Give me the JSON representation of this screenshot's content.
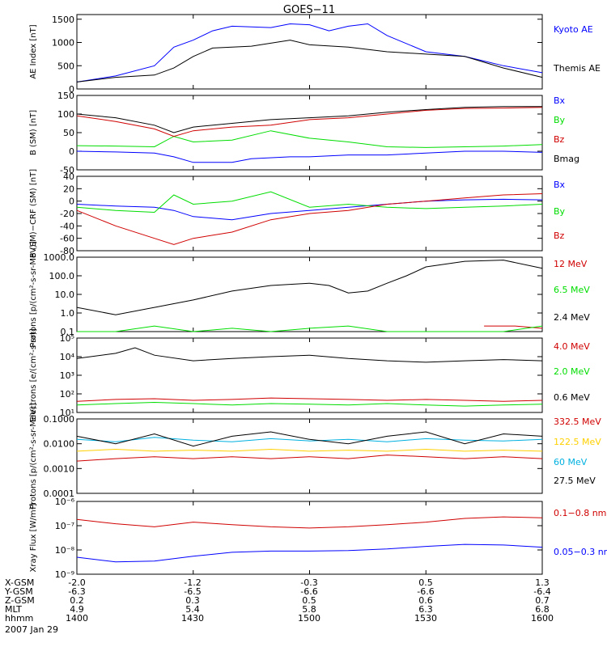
{
  "title": "GOES−11",
  "colors": {
    "black": "#000000",
    "blue": "#0000ff",
    "red": "#d00000",
    "green": "#00dd00",
    "cyan": "#00b0e0",
    "yellow": "#ffd000"
  },
  "footer": {
    "rows": [
      {
        "label": "X-GSM",
        "values": [
          "-2.0",
          "-1.2",
          "-0.3",
          "0.5",
          "1.3"
        ]
      },
      {
        "label": "Y-GSM",
        "values": [
          "-6.3",
          "-6.5",
          "-6.6",
          "-6.6",
          "-6.4"
        ]
      },
      {
        "label": "Z-GSM",
        "values": [
          "0.2",
          "0.3",
          "0.5",
          "0.6",
          "0.7"
        ]
      },
      {
        "label": "MLT",
        "values": [
          "4.9",
          "5.4",
          "5.8",
          "6.3",
          "6.8"
        ]
      },
      {
        "label": "hhmm",
        "values": [
          "1400",
          "1430",
          "1500",
          "1530",
          "1600"
        ]
      }
    ],
    "date": "2007 Jan 29"
  },
  "chart_data": [
    {
      "type": "line",
      "ylabel": "AE Index [nT]",
      "scale": "linear",
      "ylim": [
        0,
        1600
      ],
      "yticks": [
        0,
        500,
        1000,
        1500
      ],
      "ytick_labels": [
        "0",
        "500",
        "1000",
        "1500"
      ],
      "series": [
        {
          "name": "Kyoto AE",
          "color": "#0000ff",
          "x": [
            1400,
            1410,
            1420,
            1425,
            1430,
            1435,
            1440,
            1450,
            1455,
            1500,
            1505,
            1510,
            1515,
            1520,
            1530,
            1535,
            1540,
            1545,
            1550,
            1600
          ],
          "y": [
            150,
            280,
            500,
            900,
            1050,
            1250,
            1350,
            1320,
            1400,
            1380,
            1250,
            1350,
            1400,
            1150,
            800,
            750,
            700,
            600,
            500,
            350
          ]
        },
        {
          "name": "Themis AE",
          "color": "#000000",
          "x": [
            1400,
            1410,
            1420,
            1425,
            1430,
            1435,
            1445,
            1455,
            1500,
            1510,
            1520,
            1530,
            1540,
            1550,
            1600
          ],
          "y": [
            150,
            250,
            300,
            450,
            700,
            880,
            920,
            1050,
            950,
            900,
            800,
            750,
            700,
            450,
            250
          ]
        }
      ]
    },
    {
      "type": "line",
      "ylabel": "B (SM) [nT]",
      "scale": "linear",
      "ylim": [
        -50,
        150
      ],
      "yticks": [
        -50,
        0,
        50,
        100,
        150
      ],
      "ytick_labels": [
        "-50",
        "0",
        "50",
        "100",
        "150"
      ],
      "series": [
        {
          "name": "Bx",
          "color": "#0000ff",
          "x": [
            1400,
            1410,
            1420,
            1425,
            1430,
            1440,
            1445,
            1455,
            1500,
            1510,
            1520,
            1530,
            1540,
            1550,
            1600
          ],
          "y": [
            0,
            -2,
            -5,
            -15,
            -30,
            -30,
            -20,
            -15,
            -15,
            -10,
            -10,
            -5,
            0,
            0,
            -3
          ]
        },
        {
          "name": "By",
          "color": "#00dd00",
          "x": [
            1400,
            1410,
            1420,
            1425,
            1430,
            1440,
            1450,
            1500,
            1510,
            1520,
            1530,
            1540,
            1550,
            1600
          ],
          "y": [
            15,
            14,
            12,
            40,
            25,
            30,
            55,
            35,
            25,
            12,
            10,
            12,
            14,
            18
          ]
        },
        {
          "name": "Bz",
          "color": "#d00000",
          "x": [
            1400,
            1410,
            1420,
            1425,
            1430,
            1440,
            1450,
            1500,
            1510,
            1520,
            1530,
            1540,
            1550,
            1600
          ],
          "y": [
            95,
            80,
            60,
            40,
            55,
            65,
            70,
            85,
            90,
            100,
            110,
            115,
            116,
            118
          ]
        },
        {
          "name": "Bmag",
          "color": "#000000",
          "x": [
            1400,
            1410,
            1420,
            1425,
            1430,
            1440,
            1450,
            1500,
            1510,
            1520,
            1530,
            1540,
            1550,
            1600
          ],
          "y": [
            100,
            90,
            70,
            50,
            65,
            75,
            85,
            90,
            95,
            105,
            112,
            118,
            120,
            120
          ]
        }
      ]
    },
    {
      "type": "line",
      "ylabel": "B (SM)−CRF (SM) [nT]",
      "scale": "linear",
      "ylim": [
        -80,
        40
      ],
      "yticks": [
        -80,
        -60,
        -40,
        -20,
        0,
        20,
        40
      ],
      "ytick_labels": [
        "-80",
        "-60",
        "-40",
        "-20",
        "0",
        "20",
        "40"
      ],
      "series": [
        {
          "name": "Bx",
          "color": "#0000ff",
          "x": [
            1400,
            1410,
            1420,
            1425,
            1430,
            1440,
            1450,
            1500,
            1510,
            1520,
            1530,
            1540,
            1550,
            1600
          ],
          "y": [
            -5,
            -8,
            -10,
            -15,
            -25,
            -30,
            -20,
            -15,
            -10,
            -5,
            0,
            2,
            3,
            2
          ]
        },
        {
          "name": "By",
          "color": "#00dd00",
          "x": [
            1400,
            1410,
            1420,
            1425,
            1430,
            1440,
            1450,
            1500,
            1510,
            1520,
            1530,
            1540,
            1550,
            1600
          ],
          "y": [
            -10,
            -15,
            -18,
            10,
            -5,
            0,
            15,
            -10,
            -5,
            -10,
            -12,
            -10,
            -8,
            -5
          ]
        },
        {
          "name": "Bz",
          "color": "#d00000",
          "x": [
            1400,
            1410,
            1420,
            1425,
            1430,
            1440,
            1450,
            1500,
            1510,
            1520,
            1530,
            1540,
            1550,
            1600
          ],
          "y": [
            -15,
            -40,
            -60,
            -70,
            -60,
            -50,
            -30,
            -20,
            -15,
            -5,
            0,
            5,
            10,
            12
          ]
        }
      ]
    },
    {
      "type": "line",
      "ylabel": "Protons [p/(cm²-s-sr-MeV)]",
      "scale": "log",
      "ylim": [
        0.1,
        1000
      ],
      "yticks": [
        0.1,
        1,
        10,
        100,
        1000
      ],
      "ytick_labels": [
        "0.1",
        "1.0",
        "10.0",
        "100.0",
        "1000.0"
      ],
      "series": [
        {
          "name": "12 MeV",
          "color": "#d00000",
          "x": [
            1545,
            1553,
            1600
          ],
          "y": [
            0.2,
            0.2,
            0.15
          ]
        },
        {
          "name": "6.5 MeV",
          "color": "#00dd00",
          "x": [
            1400,
            1410,
            1420,
            1430,
            1440,
            1450,
            1500,
            1510,
            1520,
            1530,
            1540,
            1550,
            1600
          ],
          "y": [
            0.1,
            0.1,
            0.2,
            0.1,
            0.15,
            0.1,
            0.15,
            0.2,
            0.1,
            0.1,
            0.1,
            0.1,
            0.2
          ]
        },
        {
          "name": "2.4 MeV",
          "color": "#000000",
          "x": [
            1400,
            1410,
            1420,
            1430,
            1440,
            1450,
            1500,
            1505,
            1510,
            1515,
            1520,
            1525,
            1530,
            1540,
            1550,
            1600
          ],
          "y": [
            2,
            0.8,
            2,
            5,
            15,
            30,
            40,
            30,
            12,
            15,
            40,
            100,
            300,
            600,
            700,
            250
          ]
        }
      ]
    },
    {
      "type": "line",
      "ylabel": "Electrons [e/(cm²-s-sr)]",
      "scale": "log",
      "ylim": [
        10,
        100000
      ],
      "yticks": [
        10,
        100,
        1000,
        10000,
        100000
      ],
      "ytick_labels": [
        "10¹",
        "10²",
        "10³",
        "10⁴",
        "10⁵"
      ],
      "series": [
        {
          "name": "4.0 MeV",
          "color": "#d00000",
          "x": [
            1400,
            1410,
            1420,
            1430,
            1440,
            1450,
            1500,
            1510,
            1520,
            1530,
            1540,
            1550,
            1600
          ],
          "y": [
            40,
            50,
            55,
            45,
            50,
            60,
            55,
            50,
            45,
            50,
            45,
            40,
            45
          ]
        },
        {
          "name": "2.0 MeV",
          "color": "#00dd00",
          "x": [
            1400,
            1410,
            1420,
            1430,
            1440,
            1450,
            1500,
            1510,
            1520,
            1530,
            1540,
            1550,
            1600
          ],
          "y": [
            25,
            30,
            35,
            30,
            25,
            30,
            28,
            25,
            30,
            25,
            22,
            25,
            28
          ]
        },
        {
          "name": "0.6 MeV",
          "color": "#000000",
          "x": [
            1400,
            1410,
            1415,
            1420,
            1430,
            1440,
            1450,
            1500,
            1510,
            1520,
            1530,
            1540,
            1550,
            1600
          ],
          "y": [
            8000,
            15000,
            30000,
            12000,
            6000,
            8000,
            10000,
            12000,
            8000,
            6000,
            5000,
            6000,
            7000,
            6000
          ]
        }
      ]
    },
    {
      "type": "line",
      "ylabel": "Protons [p/(cm²-s-sr-MeV)]",
      "scale": "log",
      "ylim": [
        0.0001,
        0.1
      ],
      "yticks": [
        0.0001,
        0.001,
        0.01,
        0.1
      ],
      "ytick_labels": [
        "0.0001",
        "0.0010",
        "0.0100",
        "0.1000"
      ],
      "series": [
        {
          "name": "332.5 MeV",
          "color": "#d00000",
          "x": [
            1400,
            1410,
            1420,
            1430,
            1440,
            1450,
            1500,
            1510,
            1520,
            1530,
            1540,
            1550,
            1600
          ],
          "y": [
            0.002,
            0.0025,
            0.003,
            0.0025,
            0.003,
            0.0025,
            0.003,
            0.0025,
            0.0035,
            0.003,
            0.0025,
            0.003,
            0.0025
          ]
        },
        {
          "name": "122.5 MeV",
          "color": "#ffd000",
          "x": [
            1400,
            1410,
            1420,
            1430,
            1440,
            1450,
            1500,
            1510,
            1520,
            1530,
            1540,
            1550,
            1600
          ],
          "y": [
            0.005,
            0.006,
            0.005,
            0.0055,
            0.005,
            0.006,
            0.005,
            0.0055,
            0.005,
            0.006,
            0.005,
            0.0055,
            0.005
          ]
        },
        {
          "name": "60 MeV",
          "color": "#00b0e0",
          "x": [
            1400,
            1410,
            1420,
            1430,
            1440,
            1450,
            1500,
            1510,
            1520,
            1530,
            1540,
            1550,
            1600
          ],
          "y": [
            0.015,
            0.012,
            0.018,
            0.014,
            0.012,
            0.016,
            0.013,
            0.015,
            0.012,
            0.016,
            0.014,
            0.013,
            0.015
          ]
        },
        {
          "name": "27.5 MeV",
          "color": "#000000",
          "x": [
            1400,
            1410,
            1420,
            1430,
            1440,
            1450,
            1500,
            1510,
            1520,
            1530,
            1540,
            1550,
            1600
          ],
          "y": [
            0.02,
            0.01,
            0.025,
            0.008,
            0.02,
            0.03,
            0.015,
            0.01,
            0.02,
            0.03,
            0.01,
            0.025,
            0.02
          ]
        }
      ]
    },
    {
      "type": "line",
      "ylabel": "Xray Flux [W/m²]",
      "scale": "log",
      "ylim": [
        1e-09,
        1e-06
      ],
      "yticks": [
        1e-09,
        1e-08,
        1e-07,
        1e-06
      ],
      "ytick_labels": [
        "10⁻⁹",
        "10⁻⁸",
        "10⁻⁷",
        "10⁻⁶"
      ],
      "series": [
        {
          "name": "0.1−0.8 nm",
          "color": "#d00000",
          "x": [
            1400,
            1410,
            1420,
            1430,
            1440,
            1450,
            1500,
            1510,
            1520,
            1530,
            1540,
            1550,
            1600
          ],
          "y": [
            1.8e-07,
            1.2e-07,
            9e-08,
            1.4e-07,
            1.1e-07,
            9e-08,
            8e-08,
            9e-08,
            1.1e-07,
            1.4e-07,
            2e-07,
            2.3e-07,
            2.1e-07
          ]
        },
        {
          "name": "0.05−0.3 nm",
          "color": "#0000ff",
          "x": [
            1400,
            1410,
            1420,
            1430,
            1440,
            1450,
            1500,
            1510,
            1520,
            1530,
            1540,
            1550,
            1600
          ],
          "y": [
            5e-09,
            3.2e-09,
            3.5e-09,
            5.5e-09,
            8e-09,
            9e-09,
            9e-09,
            9.5e-09,
            1.1e-08,
            1.4e-08,
            1.7e-08,
            1.6e-08,
            1.3e-08
          ]
        }
      ]
    }
  ]
}
